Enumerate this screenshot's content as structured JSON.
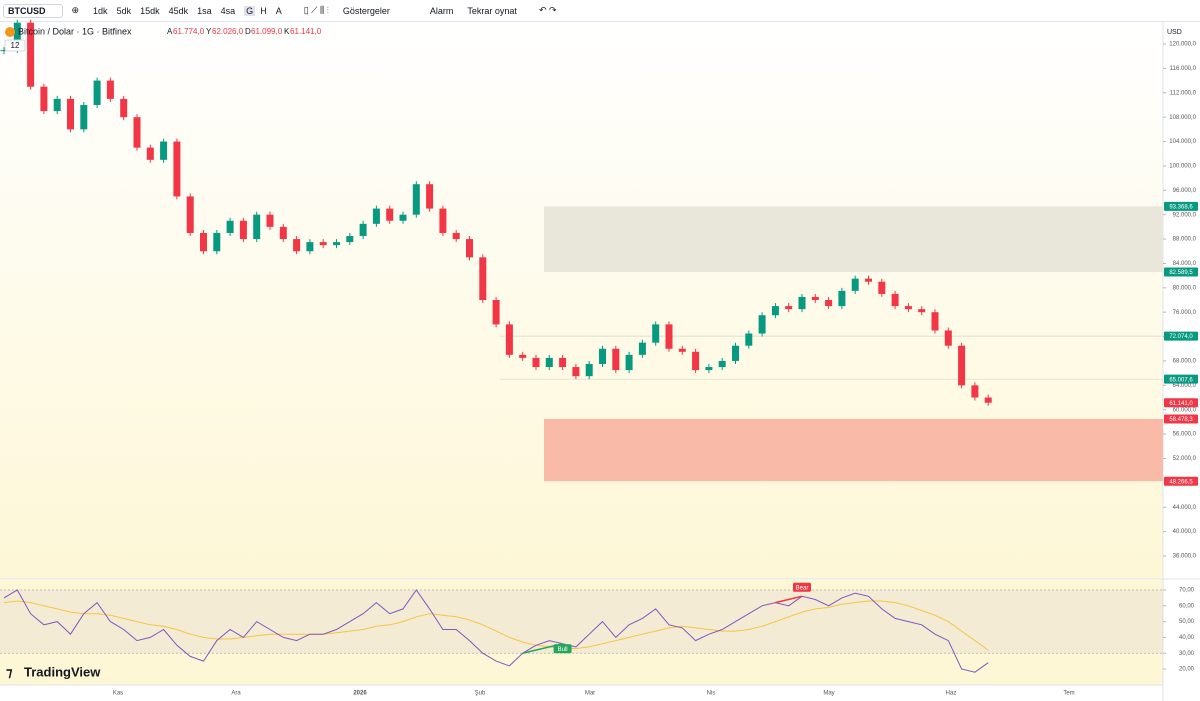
{
  "toolbar": {
    "symbol": "BTCUSD",
    "intervals": [
      "1dk",
      "5dk",
      "15dk",
      "45dk",
      "1sa",
      "4sa",
      "G",
      "H",
      "A"
    ],
    "indicators": "Göstergeler",
    "alert": "Alarm",
    "replay": "Tekrar oynat"
  },
  "chart_data": {
    "type": "candlestick",
    "title": "Bitcoin / Dolar · 1G · Bitfinex",
    "badge": "12",
    "currency": "USD",
    "watermark": "TradingView",
    "ohlc": [
      {
        "key": "A",
        "value": 61774,
        "label": "61.774,0"
      },
      {
        "key": "Y",
        "value": 62026,
        "label": "62.026,0"
      },
      {
        "key": "D",
        "value": 61099,
        "label": "61.099,0"
      },
      {
        "key": "K",
        "value": 61141,
        "label": "61.141,0"
      }
    ],
    "close": [
      119000,
      123500,
      113000,
      109000,
      111000,
      106000,
      110000,
      114000,
      111000,
      108000,
      103000,
      101000,
      104000,
      95000,
      89000,
      86000,
      89000,
      91000,
      88000,
      92000,
      90000,
      88000,
      86000,
      87500,
      87000,
      87500,
      88500,
      90500,
      93000,
      91000,
      92000,
      97000,
      93000,
      89000,
      88000,
      85000,
      78000,
      74000,
      69000,
      68500,
      67000,
      68500,
      67000,
      65500,
      67500,
      70000,
      66500,
      69000,
      71000,
      74000,
      70000,
      69500,
      66500,
      67000,
      68000,
      70500,
      72500,
      75500,
      77000,
      76500,
      78500,
      78000,
      77000,
      79500,
      81500,
      81000,
      79000,
      77000,
      76500,
      76000,
      73000,
      70500,
      64000,
      62000,
      61141
    ],
    "up_color": "#089981",
    "down_color": "#f23645",
    "ylim": [
      32219,
      123617
    ],
    "yticks": [
      {
        "value": 36000,
        "label": "36.000,0"
      },
      {
        "value": 40000,
        "label": "40.000,0"
      },
      {
        "value": 44000,
        "label": "44.000,0"
      },
      {
        "value": 52000,
        "label": "52.000,0"
      },
      {
        "value": 56000,
        "label": "56.000,0"
      },
      {
        "value": 60000,
        "label": "60.000,0"
      },
      {
        "value": 64000,
        "label": "64.000,0"
      },
      {
        "value": 68000,
        "label": "68.000,0"
      },
      {
        "value": 72000,
        "label": "72.000,0"
      },
      {
        "value": 76000,
        "label": "76.000,0"
      },
      {
        "value": 80000,
        "label": "80.000,0"
      },
      {
        "value": 84000,
        "label": "84.000,0"
      },
      {
        "value": 88000,
        "label": "88.000,0"
      },
      {
        "value": 92000,
        "label": "92.000,0"
      },
      {
        "value": 96000,
        "label": "96.000,0"
      },
      {
        "value": 100000,
        "label": "100.000,0"
      },
      {
        "value": 104000,
        "label": "104.000,0"
      },
      {
        "value": 108000,
        "label": "108.000,0"
      },
      {
        "value": 112000,
        "label": "112.000,0"
      },
      {
        "value": 116000,
        "label": "116.000,0"
      },
      {
        "value": 120000,
        "label": "120.000,0"
      }
    ],
    "zones": [
      {
        "from": 82589.5,
        "to": 93368.6,
        "color": "#e9e6da"
      },
      {
        "from": 48266.5,
        "to": 58478.3,
        "color": "#f9bba8"
      }
    ],
    "levels": [
      72074,
      65007.6
    ],
    "price_labels": [
      {
        "value": 93368.6,
        "label": "93.368,6",
        "color": "#089981"
      },
      {
        "value": 82589.5,
        "label": "82.589,5",
        "color": "#089981"
      },
      {
        "value": 72074,
        "label": "72.074,0",
        "color": "#089981"
      },
      {
        "value": 65007.6,
        "label": "65.007,6",
        "color": "#089981"
      },
      {
        "value": 61141,
        "label": "61.141,0",
        "color": "#f23645"
      },
      {
        "value": 58478.3,
        "label": "58.478,3",
        "color": "#f23645"
      },
      {
        "value": 48266.5,
        "label": "48.266,5",
        "color": "#f23645"
      }
    ],
    "time_labels": [
      "Kas",
      "Ara",
      "2026",
      "Şub",
      "Mar",
      "Nis",
      "May",
      "Haz",
      "Tem"
    ],
    "rsi": {
      "values": [
        65,
        70,
        55,
        48,
        50,
        42,
        55,
        62,
        50,
        45,
        38,
        40,
        45,
        35,
        28,
        25,
        38,
        45,
        40,
        50,
        45,
        40,
        38,
        42,
        42,
        45,
        50,
        55,
        62,
        55,
        58,
        70,
        58,
        45,
        45,
        38,
        30,
        25,
        22,
        30,
        35,
        38,
        36,
        34,
        42,
        50,
        40,
        48,
        52,
        58,
        48,
        46,
        38,
        42,
        45,
        50,
        55,
        60,
        62,
        60,
        66,
        64,
        60,
        65,
        68,
        66,
        58,
        52,
        50,
        48,
        42,
        38,
        20,
        18,
        24
      ],
      "ma": [
        62,
        63,
        62,
        60,
        58,
        56,
        55,
        55,
        54,
        52,
        50,
        48,
        47,
        45,
        42,
        40,
        39,
        39,
        40,
        41,
        42,
        42,
        42,
        42,
        42,
        43,
        44,
        45,
        47,
        48,
        50,
        53,
        55,
        54,
        53,
        51,
        48,
        44,
        40,
        37,
        35,
        34,
        33,
        33,
        34,
        36,
        38,
        40,
        42,
        44,
        46,
        47,
        46,
        45,
        44,
        44,
        45,
        47,
        50,
        53,
        56,
        58,
        59,
        61,
        62,
        63,
        63,
        62,
        60,
        57,
        54,
        50,
        44,
        38,
        32
      ],
      "color": "#7e57c2",
      "ma_color": "#f5c542",
      "ylim": [
        9.9,
        76.3
      ],
      "band": [
        30,
        70
      ],
      "yticks": [
        {
          "value": 20,
          "label": "20,00"
        },
        {
          "value": 30,
          "label": "30,00"
        },
        {
          "value": 40,
          "label": "40,00"
        },
        {
          "value": 50,
          "label": "50,00"
        },
        {
          "value": 60,
          "label": "60,00"
        },
        {
          "value": 70,
          "label": "70,00"
        }
      ],
      "signals": [
        {
          "label": "Bull",
          "color": "#26a65b"
        },
        {
          "label": "Bear",
          "color": "#f23645"
        }
      ]
    }
  }
}
